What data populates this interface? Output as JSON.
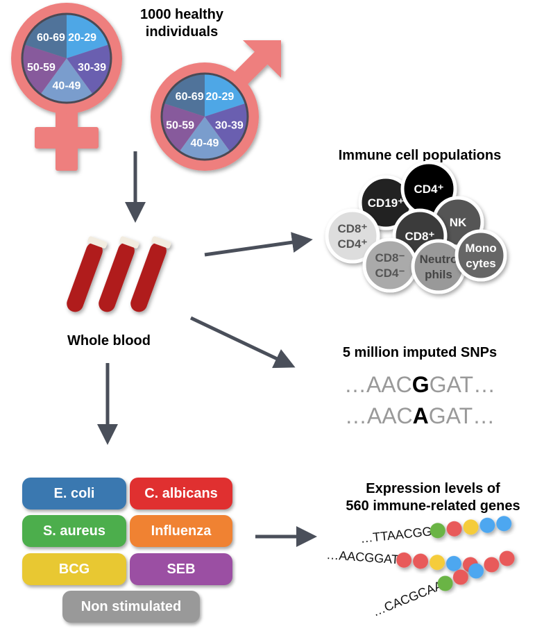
{
  "title": "1000 healthy individuals",
  "title_lines": [
    "1000 healthy",
    "individuals"
  ],
  "age_groups": [
    "20-29",
    "30-39",
    "40-49",
    "50-59",
    "60-69"
  ],
  "age_colors": [
    "#4ea7e6",
    "#6a5fb0",
    "#7a9dcd",
    "#875a9c",
    "#50739a"
  ],
  "symbol_color": "#ee7f7e",
  "arrow_color": "#4a4f5a",
  "whole_blood": "Whole blood",
  "immune": {
    "title": "Immune cell populations",
    "cells": [
      {
        "lines": [
          "CD19⁺"
        ],
        "color": "#222222",
        "text": "#ffffff"
      },
      {
        "lines": [
          "CD4⁺"
        ],
        "color": "#000000",
        "text": "#ffffff"
      },
      {
        "lines": [
          "NK"
        ],
        "color": "#555555",
        "text": "#ffffff"
      },
      {
        "lines": [
          "CD8⁺"
        ],
        "color": "#3a3a3a",
        "text": "#ffffff"
      },
      {
        "lines": [
          "CD8⁺",
          "CD4⁺"
        ],
        "color": "#dddddd",
        "text": "#555555"
      },
      {
        "lines": [
          "CD8⁻",
          "CD4⁻"
        ],
        "color": "#aaaaaa",
        "text": "#555555"
      },
      {
        "lines": [
          "Neutro",
          "phils"
        ],
        "color": "#999999",
        "text": "#444444"
      },
      {
        "lines": [
          "Mono",
          "cytes"
        ],
        "color": "#666666",
        "text": "#ffffff"
      }
    ]
  },
  "snps": {
    "title": "5 million imputed SNPs",
    "seq1": {
      "pre": "…AAC",
      "snp": "G",
      "post": "GAT…"
    },
    "seq2": {
      "pre": "…AAC",
      "snp": "A",
      "post": "GAT…"
    }
  },
  "stimuli": [
    {
      "label": "E. coli",
      "color": "#3a78b0"
    },
    {
      "label": "C. albicans",
      "color": "#e03030"
    },
    {
      "label": "S. aureus",
      "color": "#4cae4c"
    },
    {
      "label": "Influenza",
      "color": "#f08232"
    },
    {
      "label": "BCG",
      "color": "#e8c832"
    },
    {
      "label": "SEB",
      "color": "#9b4fa3"
    },
    {
      "label": "Non stimulated",
      "color": "#999999"
    }
  ],
  "expression": {
    "title_lines": [
      "Expression levels of",
      "560 immune-related genes"
    ],
    "sequences": [
      {
        "text": "…TTAACGG",
        "beads": [
          "#6ab444",
          "#e85a5a",
          "#f5cc3a",
          "#4ea7f0",
          "#4ea7f0"
        ]
      },
      {
        "text": "…AACGGAT",
        "beads": [
          "#e85a5a",
          "#e85a5a",
          "#f5cc3a",
          "#4ea7f0",
          "#e85a5a"
        ]
      },
      {
        "text": "…CACGCAA",
        "beads": [
          "#6ab444",
          "#e85a5a",
          "#4ea7f0",
          "#e85a5a",
          "#e85a5a"
        ]
      }
    ]
  }
}
